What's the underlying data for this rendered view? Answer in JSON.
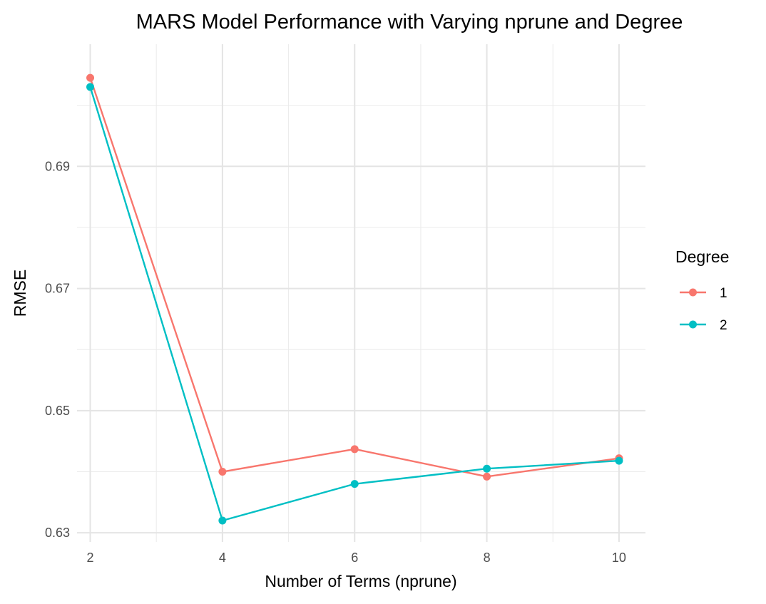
{
  "chart_data": {
    "type": "line",
    "title": "MARS Model Performance with Varying nprune and Degree",
    "xlabel": "Number of Terms (nprune)",
    "ylabel": "RMSE",
    "xlim": [
      1.8,
      10.4
    ],
    "ylim": [
      0.6285,
      0.71
    ],
    "x_ticks": [
      2,
      4,
      6,
      8,
      10
    ],
    "x_tick_labels": [
      "2",
      "4",
      "6",
      "8",
      "10"
    ],
    "y_ticks": [
      0.63,
      0.65,
      0.67,
      0.69
    ],
    "y_tick_labels": [
      "0.63",
      "0.65",
      "0.67",
      "0.69"
    ],
    "grid": true,
    "legend": {
      "title": "Degree",
      "placement": "right"
    },
    "x": [
      2,
      4,
      6,
      8,
      10
    ],
    "series": [
      {
        "name": "1",
        "color": "#F8766D",
        "values": [
          0.7045,
          0.64,
          0.6437,
          0.6392,
          0.6422
        ]
      },
      {
        "name": "2",
        "color": "#00BFC4",
        "values": [
          0.703,
          0.632,
          0.638,
          0.6405,
          0.6418
        ]
      }
    ]
  }
}
